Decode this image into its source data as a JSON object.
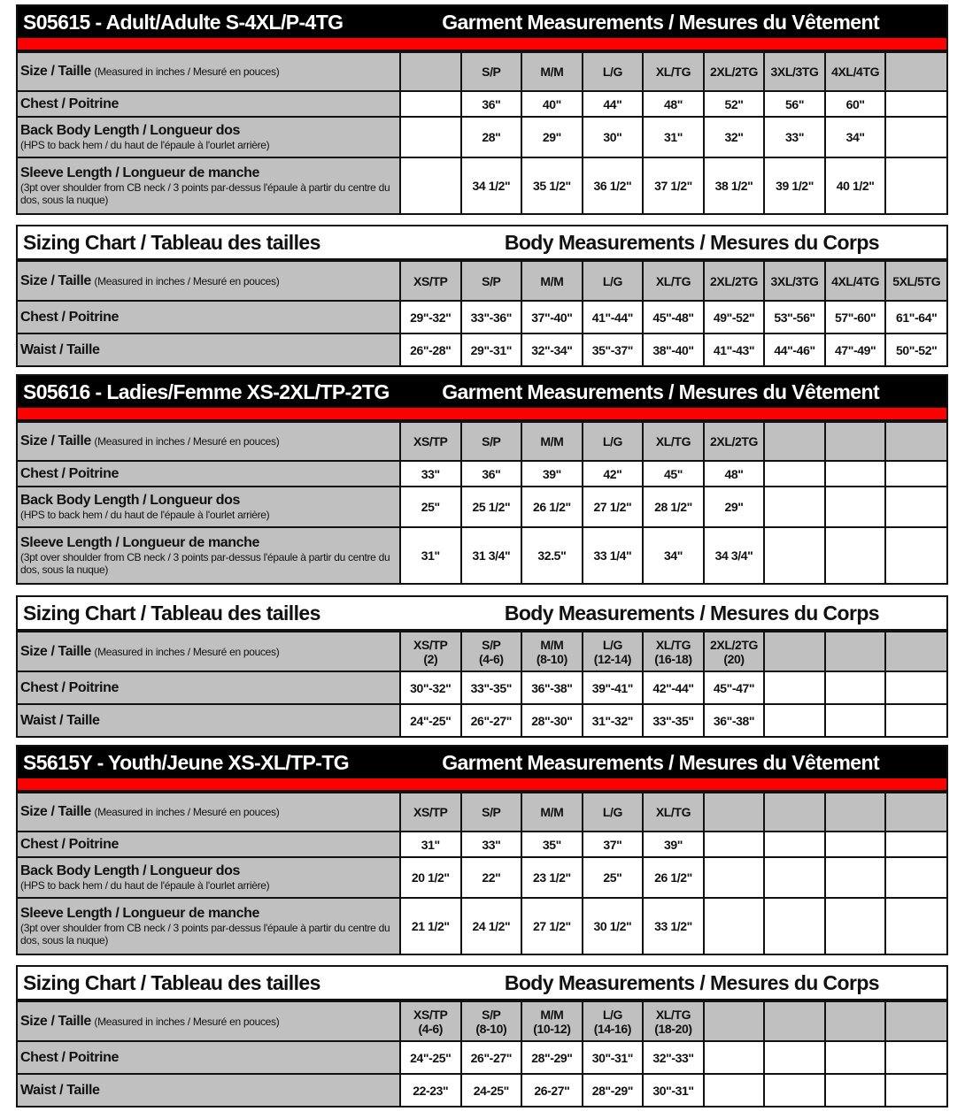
{
  "colors": {
    "header_bg": "#000000",
    "red_bar": "#ff0000",
    "label_bg": "#c0c0c0"
  },
  "sections": [
    {
      "type": "garment",
      "title": "S05615 - Adult/Adulte S-4XL/P-4TG",
      "subtitle": "Garment Measurements / Mesures du Vêtement",
      "size_label": "Size / Taille",
      "size_note": "(Measured in inches / Mesuré en pouces)",
      "sizes": [
        "",
        "S/P",
        "M/M",
        "L/G",
        "XL/TG",
        "2XL/2TG",
        "3XL/3TG",
        "4XL/4TG",
        ""
      ],
      "rows": [
        {
          "label": "Chest / Poitrine",
          "note": "",
          "values": [
            "",
            "36\"",
            "40\"",
            "44\"",
            "48\"",
            "52\"",
            "56\"",
            "60\"",
            ""
          ]
        },
        {
          "label": "Back Body Length / Longueur dos",
          "note": "(HPS to back hem  / du haut de l'épaule à l'ourlet arrière)",
          "values": [
            "",
            "28\"",
            "29\"",
            "30\"",
            "31\"",
            "32\"",
            "33\"",
            "34\"",
            ""
          ]
        },
        {
          "label": "Sleeve Length / Longueur de manche",
          "note": "(3pt over shoulder from CB neck / 3 points par-dessus l'épaule à partir du centre du dos, sous la nuque)",
          "values": [
            "",
            "34 1/2\"",
            "35 1/2\"",
            "36 1/2\"",
            "37 1/2\"",
            "38 1/2\"",
            "39 1/2\"",
            "40 1/2\"",
            ""
          ]
        }
      ]
    },
    {
      "type": "body",
      "title": "Sizing Chart / Tableau des tailles",
      "subtitle": "Body Measurements / Mesures du Corps",
      "size_label": "Size / Taille",
      "size_note": "(Measured in inches / Mesuré en pouces)",
      "sizes": [
        "XS/TP",
        "S/P",
        "M/M",
        "L/G",
        "XL/TG",
        "2XL/2TG",
        "3XL/3TG",
        "4XL/4TG",
        "5XL/5TG"
      ],
      "rows": [
        {
          "label": "Chest / Poitrine",
          "note": "",
          "values": [
            "29\"-32\"",
            "33\"-36\"",
            "37\"-40\"",
            "41\"-44\"",
            "45\"-48\"",
            "49\"-52\"",
            "53\"-56\"",
            "57\"-60\"",
            "61\"-64\""
          ]
        },
        {
          "label": "Waist / Taille",
          "note": "",
          "values": [
            "26\"-28\"",
            "29\"-31\"",
            "32\"-34\"",
            "35\"-37\"",
            "38\"-40\"",
            "41\"-43\"",
            "44\"-46\"",
            "47\"-49\"",
            "50\"-52\""
          ]
        }
      ]
    },
    {
      "type": "garment",
      "title": "S05616 - Ladies/Femme XS-2XL/TP-2TG",
      "subtitle": "Garment Measurements / Mesures du Vêtement",
      "size_label": "Size / Taille",
      "size_note": "(Measured in inches / Mesuré en pouces)",
      "sizes": [
        "XS/TP",
        "S/P",
        "M/M",
        "L/G",
        "XL/TG",
        "2XL/2TG",
        "",
        "",
        ""
      ],
      "rows": [
        {
          "label": "Chest / Poitrine",
          "note": "",
          "values": [
            "33\"",
            "36\"",
            "39\"",
            "42\"",
            "45\"",
            "48\"",
            "",
            "",
            ""
          ]
        },
        {
          "label": "Back Body Length / Longueur dos",
          "note": "(HPS to back hem  / du haut de l'épaule à l'ourlet arrière)",
          "values": [
            "25\"",
            "25 1/2\"",
            "26 1/2\"",
            "27 1/2\"",
            "28 1/2\"",
            "29\"",
            "",
            "",
            ""
          ]
        },
        {
          "label": "Sleeve Length / Longueur de manche",
          "note": "(3pt over shoulder from CB neck / 3 points par-dessus l'épaule à partir du centre du dos, sous la nuque)",
          "values": [
            "31\"",
            "31 3/4\"",
            "32.5\"",
            "33 1/4\"",
            "34\"",
            "34 3/4\"",
            "",
            "",
            ""
          ]
        }
      ]
    },
    {
      "type": "body",
      "title": "Sizing Chart / Tableau des tailles",
      "subtitle": "Body Measurements / Mesures du Corps",
      "size_label": "Size / Taille",
      "size_note": "(Measured in inches / Mesuré en pouces)",
      "sizes": [
        "XS/TP (2)",
        "S/P (4-6)",
        "M/M (8-10)",
        "L/G (12-14)",
        "XL/TG (16-18)",
        "2XL/2TG (20)",
        "",
        "",
        ""
      ],
      "rows": [
        {
          "label": "Chest / Poitrine",
          "note": "",
          "values": [
            "30\"-32\"",
            "33\"-35\"",
            "36\"-38\"",
            "39\"-41\"",
            "42\"-44\"",
            "45\"-47\"",
            "",
            "",
            ""
          ]
        },
        {
          "label": "Waist / Taille",
          "note": "",
          "values": [
            "24\"-25\"",
            "26\"-27\"",
            "28\"-30\"",
            "31\"-32\"",
            "33\"-35\"",
            "36\"-38\"",
            "",
            "",
            ""
          ]
        }
      ]
    },
    {
      "type": "garment",
      "title": "S5615Y - Youth/Jeune XS-XL/TP-TG",
      "subtitle": "Garment Measurements / Mesures du Vêtement",
      "size_label": "Size / Taille",
      "size_note": "(Measured in inches / Mesuré en pouces)",
      "sizes": [
        "XS/TP",
        "S/P",
        "M/M",
        "L/G",
        "XL/TG",
        "",
        "",
        "",
        ""
      ],
      "rows": [
        {
          "label": "Chest / Poitrine",
          "note": "",
          "values": [
            "31\"",
            "33\"",
            "35\"",
            "37\"",
            "39\"",
            "",
            "",
            "",
            ""
          ]
        },
        {
          "label": "Back Body Length / Longueur dos",
          "note": "(HPS to back hem  / du haut de l'épaule à l'ourlet arrière)",
          "values": [
            "20 1/2\"",
            "22\"",
            "23 1/2\"",
            "25\"",
            "26 1/2\"",
            "",
            "",
            "",
            ""
          ]
        },
        {
          "label": "Sleeve Length / Longueur de manche",
          "note": "(3pt over shoulder from CB neck / 3 points par-dessus l'épaule à partir du centre du dos, sous la nuque)",
          "values": [
            "21 1/2\"",
            "24 1/2\"",
            "27 1/2\"",
            "30 1/2\"",
            "33 1/2\"",
            "",
            "",
            "",
            ""
          ]
        }
      ]
    },
    {
      "type": "body",
      "title": "Sizing Chart / Tableau des tailles",
      "subtitle": "Body Measurements / Mesures du Corps",
      "size_label": "Size / Taille",
      "size_note": "(Measured in inches / Mesuré en pouces)",
      "sizes": [
        "XS/TP (4-6)",
        "S/P (8-10)",
        "M/M (10-12)",
        "L/G (14-16)",
        "XL/TG (18-20)",
        "",
        "",
        "",
        ""
      ],
      "rows": [
        {
          "label": "Chest / Poitrine",
          "note": "",
          "values": [
            "24\"-25\"",
            "26\"-27\"",
            "28\"-29\"",
            "30\"-31\"",
            "32\"-33\"",
            "",
            "",
            "",
            ""
          ]
        },
        {
          "label": "Waist / Taille",
          "note": "",
          "values": [
            "22-23\"",
            "24-25\"",
            "26-27\"",
            "28\"-29\"",
            "30\"-31\"",
            "",
            "",
            "",
            ""
          ]
        }
      ]
    }
  ]
}
